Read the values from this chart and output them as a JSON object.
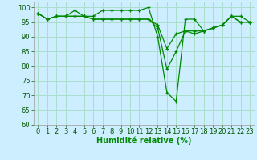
{
  "xlabel": "Humidité relative (%)",
  "background_color": "#cceeff",
  "grid_color": "#aaddcc",
  "line_color": "#008800",
  "xlim": [
    -0.5,
    23.5
  ],
  "ylim": [
    60,
    102
  ],
  "yticks": [
    60,
    65,
    70,
    75,
    80,
    85,
    90,
    95,
    100
  ],
  "xticks": [
    0,
    1,
    2,
    3,
    4,
    5,
    6,
    7,
    8,
    9,
    10,
    11,
    12,
    13,
    14,
    15,
    16,
    17,
    18,
    19,
    20,
    21,
    22,
    23
  ],
  "series": [
    [
      98,
      96,
      97,
      97,
      99,
      97,
      97,
      99,
      99,
      99,
      99,
      99,
      100,
      90,
      71,
      68,
      96,
      96,
      92,
      93,
      94,
      97,
      97,
      95
    ],
    [
      98,
      96,
      97,
      97,
      97,
      97,
      96,
      96,
      96,
      96,
      96,
      96,
      96,
      93,
      79,
      85,
      92,
      92,
      92,
      93,
      94,
      97,
      95,
      95
    ],
    [
      98,
      96,
      97,
      97,
      97,
      97,
      96,
      96,
      96,
      96,
      96,
      96,
      96,
      94,
      86,
      91,
      92,
      91,
      92,
      93,
      94,
      97,
      95,
      95
    ]
  ],
  "marker": "+",
  "xlabel_fontsize": 7,
  "tick_labelsize": 6
}
